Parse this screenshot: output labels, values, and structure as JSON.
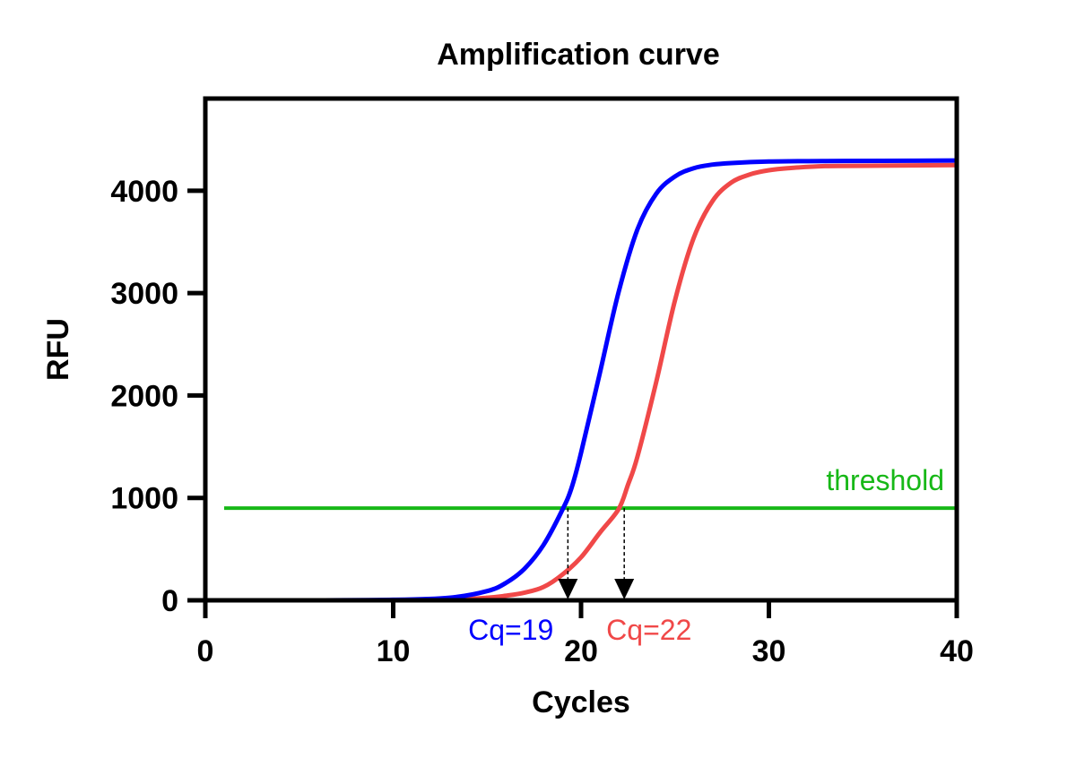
{
  "chart_data": {
    "type": "line",
    "title": "Amplification curve",
    "xlabel": "Cycles",
    "ylabel": "RFU",
    "xlim": [
      0,
      40
    ],
    "ylim": [
      0,
      4900
    ],
    "xticks": [
      0,
      10,
      20,
      30,
      40
    ],
    "yticks": [
      0,
      1000,
      2000,
      3000,
      4000
    ],
    "grid": false,
    "series": [
      {
        "color": "#0000ff",
        "x": [
          1,
          5,
          10,
          13,
          15,
          16,
          17,
          18,
          19,
          19.5,
          20,
          21,
          22,
          23,
          24,
          25,
          26,
          27,
          28,
          30,
          33,
          36,
          40
        ],
        "y": [
          0,
          0,
          5,
          25,
          90,
          170,
          310,
          540,
          880,
          1100,
          1440,
          2220,
          3010,
          3620,
          3970,
          4140,
          4220,
          4255,
          4270,
          4285,
          4290,
          4292,
          4295
        ]
      },
      {
        "color": "#f04848",
        "x": [
          1,
          5,
          10,
          13,
          15,
          16,
          17,
          18,
          19,
          20,
          21,
          22,
          22.5,
          23,
          24,
          25,
          26,
          27,
          28,
          29,
          30,
          31,
          33,
          36,
          40
        ],
        "y": [
          0,
          0,
          0,
          5,
          25,
          45,
          75,
          130,
          250,
          420,
          660,
          890,
          1130,
          1400,
          2130,
          2930,
          3540,
          3900,
          4080,
          4160,
          4200,
          4220,
          4240,
          4245,
          4250
        ]
      }
    ],
    "threshold": {
      "label": "threshold",
      "value": 900,
      "color": "#17b817",
      "x_start": 1,
      "x_end": 40
    },
    "annotations": [
      {
        "text": "Cq=19",
        "x": 19.3,
        "color": "#0000ff"
      },
      {
        "text": "Cq=22",
        "x": 22.3,
        "color": "#f04848"
      }
    ]
  }
}
